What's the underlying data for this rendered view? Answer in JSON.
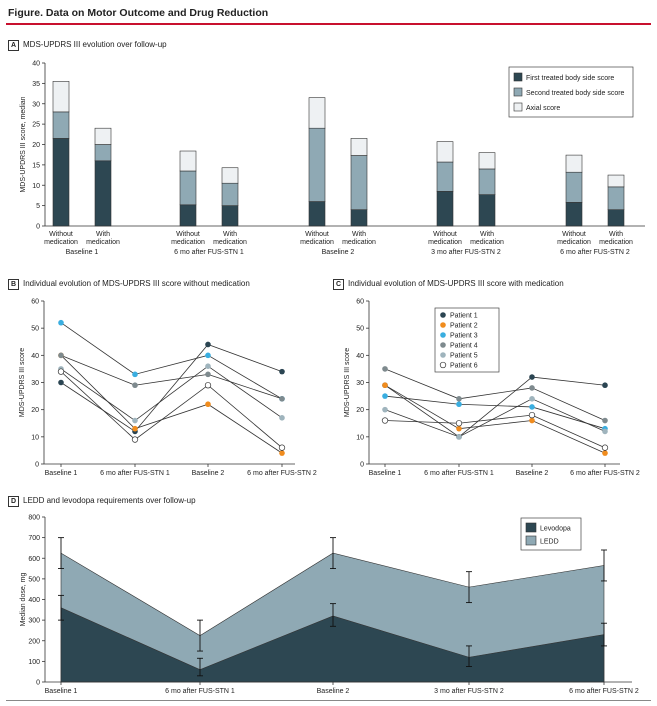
{
  "figure": {
    "title": "Figure. Data on Motor Outcome and Drug Reduction"
  },
  "colors": {
    "dark": "#2d4752",
    "mid": "#8fa9b4",
    "light": "#eef1f3",
    "rule": "#c8102e",
    "p1": "#2b4552",
    "p2": "#f08c1e",
    "p3": "#3aaee0",
    "p4": "#7e8a8e",
    "p5": "#9fb4bd",
    "p6": "#ffffff"
  },
  "chart_data": [
    {
      "id": "A",
      "letter": "A",
      "type": "bar",
      "title": "MDS-UPDRS III evolution over follow-up",
      "ylabel": "MDS-UPDRS III score, median",
      "ylim": [
        0,
        40
      ],
      "yticks": [
        "0",
        "5",
        "10",
        "15",
        "20",
        "25",
        "30",
        "35",
        "40"
      ],
      "series": [
        {
          "name": "First treated body side score",
          "color_key": "dark",
          "values": [
            21.5,
            16,
            5.2,
            5,
            6,
            4,
            8.5,
            7.7,
            5.8,
            4
          ]
        },
        {
          "name": "Second treated body side score",
          "color_key": "mid",
          "values": [
            6.5,
            4,
            8.3,
            5.5,
            18,
            13.3,
            7.2,
            6.3,
            7.4,
            5.6
          ]
        },
        {
          "name": "Axial score",
          "color_key": "light",
          "values": [
            7.5,
            4,
            4.9,
            3.8,
            7.5,
            4.2,
            5,
            4,
            4.2,
            2.9
          ]
        }
      ],
      "categories": [
        {
          "line1": "Without",
          "line2": "medication"
        },
        {
          "line1": "With",
          "line2": "medication"
        },
        {
          "line1": "Without",
          "line2": "medication"
        },
        {
          "line1": "With",
          "line2": "medication"
        },
        {
          "line1": "Without",
          "line2": "medication"
        },
        {
          "line1": "With",
          "line2": "medication"
        },
        {
          "line1": "Without",
          "line2": "medication"
        },
        {
          "line1": "With",
          "line2": "medication"
        },
        {
          "line1": "Without",
          "line2": "medication"
        },
        {
          "line1": "With",
          "line2": "medication"
        }
      ],
      "groups": [
        "Baseline 1",
        "6 mo after FUS-STN 1",
        "Baseline 2",
        "3 mo after FUS-STN 2",
        "6 mo after FUS-STN 2"
      ]
    },
    {
      "id": "B",
      "letter": "B",
      "type": "line",
      "title": "Individual evolution of MDS-UPDRS III score without medication",
      "ylabel": "MDS-UPDRS III score",
      "ylim": [
        0,
        60
      ],
      "yticks": [
        "0",
        "10",
        "20",
        "30",
        "40",
        "50",
        "60"
      ],
      "x": [
        "Baseline 1",
        "6 mo after FUS-STN 1",
        "Baseline 2",
        "6 mo after FUS-STN 2"
      ],
      "series": [
        {
          "name": "Patient 1",
          "color_key": "p1",
          "values": [
            30,
            12,
            44,
            34
          ]
        },
        {
          "name": "Patient 2",
          "color_key": "p2",
          "values": [
            40,
            13,
            22,
            4
          ]
        },
        {
          "name": "Patient 3",
          "color_key": "p3",
          "values": [
            52,
            33,
            40,
            24
          ]
        },
        {
          "name": "Patient 4",
          "color_key": "p4",
          "values": [
            40,
            29,
            33,
            24
          ]
        },
        {
          "name": "Patient 5",
          "color_key": "p5",
          "values": [
            35,
            16,
            36,
            17
          ]
        },
        {
          "name": "Patient 6",
          "color_key": "p6",
          "values": [
            34,
            9,
            29,
            6
          ]
        }
      ]
    },
    {
      "id": "C",
      "letter": "C",
      "type": "line",
      "title": "Individual evolution of MDS-UPDRS III score with medication",
      "ylabel": "MDS-UPDRS III score",
      "ylim": [
        0,
        60
      ],
      "yticks": [
        "0",
        "10",
        "20",
        "30",
        "40",
        "50",
        "60"
      ],
      "x": [
        "Baseline 1",
        "6 mo after FUS-STN 1",
        "Baseline 2",
        "6 mo after FUS-STN 2"
      ],
      "series": [
        {
          "name": "Patient 1",
          "color_key": "p1",
          "values": [
            29,
            10,
            32,
            29
          ]
        },
        {
          "name": "Patient 2",
          "color_key": "p2",
          "values": [
            29,
            13,
            16,
            4
          ]
        },
        {
          "name": "Patient 3",
          "color_key": "p3",
          "values": [
            25,
            22,
            21,
            13
          ]
        },
        {
          "name": "Patient 4",
          "color_key": "p4",
          "values": [
            35,
            24,
            28,
            16
          ]
        },
        {
          "name": "Patient 5",
          "color_key": "p5",
          "values": [
            20,
            10,
            24,
            12
          ]
        },
        {
          "name": "Patient 6",
          "color_key": "p6",
          "values": [
            16,
            15,
            18,
            6
          ]
        }
      ],
      "legend_position": "top-center"
    },
    {
      "id": "D",
      "letter": "D",
      "type": "area",
      "title": "LEDD and levodopa requirements over follow-up",
      "ylabel": "Median dose, mg",
      "ylim": [
        0,
        800
      ],
      "yticks": [
        "0",
        "100",
        "200",
        "300",
        "400",
        "500",
        "600",
        "700",
        "800"
      ],
      "x": [
        "Baseline 1",
        "6 mo after FUS-STN 1",
        "Baseline 2",
        "3 mo after FUS-STN 2",
        "6 mo after FUS-STN 2"
      ],
      "series": [
        {
          "name": "Levodopa",
          "color_key": "dark",
          "values": [
            360,
            60,
            320,
            120,
            230
          ],
          "err_low": [
            300,
            30,
            270,
            75,
            175
          ],
          "err_high": [
            420,
            115,
            380,
            175,
            285
          ]
        },
        {
          "name": "LEDD",
          "color_key": "mid",
          "values": [
            625,
            225,
            625,
            460,
            565
          ],
          "err_low": [
            550,
            150,
            550,
            385,
            490
          ],
          "err_high": [
            700,
            300,
            700,
            535,
            640
          ]
        }
      ],
      "legend_position": "top-right"
    }
  ]
}
